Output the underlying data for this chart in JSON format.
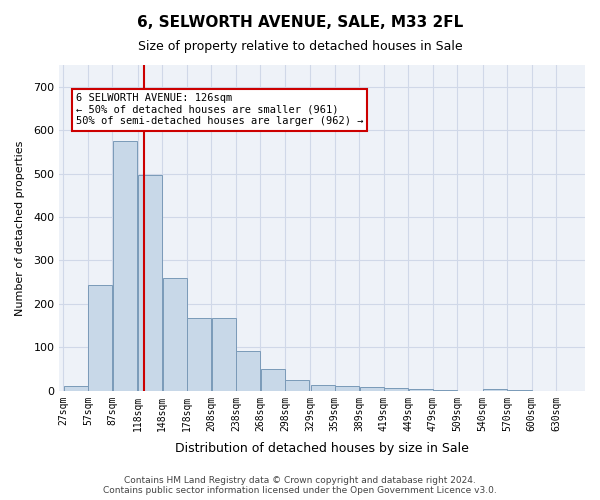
{
  "title": "6, SELWORTH AVENUE, SALE, M33 2FL",
  "subtitle": "Size of property relative to detached houses in Sale",
  "xlabel": "Distribution of detached houses by size in Sale",
  "ylabel": "Number of detached properties",
  "bar_color": "#c8d8e8",
  "bar_edge_color": "#7a9ab8",
  "grid_color": "#d0d8e8",
  "background_color": "#eef2f8",
  "property_size": 126,
  "red_line_color": "#cc0000",
  "annotation_box_color": "#cc0000",
  "annotation_text": "6 SELWORTH AVENUE: 126sqm\n← 50% of detached houses are smaller (961)\n50% of semi-detached houses are larger (962) →",
  "bins_start": [
    27,
    57,
    87,
    118,
    148,
    178,
    208,
    238,
    268,
    298,
    329,
    359,
    389,
    419,
    449,
    479,
    509,
    540,
    570,
    600
  ],
  "bin_width": 30,
  "bar_heights": [
    12,
    243,
    575,
    497,
    260,
    168,
    168,
    92,
    50,
    25,
    14,
    11,
    9,
    6,
    4,
    1,
    0,
    5,
    1,
    0
  ],
  "ylim": [
    0,
    750
  ],
  "yticks": [
    0,
    100,
    200,
    300,
    400,
    500,
    600,
    700
  ],
  "xtick_positions": [
    27,
    57,
    87,
    118,
    148,
    178,
    208,
    238,
    268,
    298,
    329,
    359,
    389,
    419,
    449,
    479,
    509,
    540,
    570,
    600,
    630
  ],
  "xtick_labels": [
    "27sqm",
    "57sqm",
    "87sqm",
    "118sqm",
    "148sqm",
    "178sqm",
    "208sqm",
    "238sqm",
    "268sqm",
    "298sqm",
    "329sqm",
    "359sqm",
    "389sqm",
    "419sqm",
    "449sqm",
    "479sqm",
    "509sqm",
    "540sqm",
    "570sqm",
    "600sqm",
    "630sqm"
  ],
  "footer": "Contains HM Land Registry data © Crown copyright and database right 2024.\nContains public sector information licensed under the Open Government Licence v3.0.",
  "figsize": [
    6.0,
    5.0
  ],
  "dpi": 100
}
